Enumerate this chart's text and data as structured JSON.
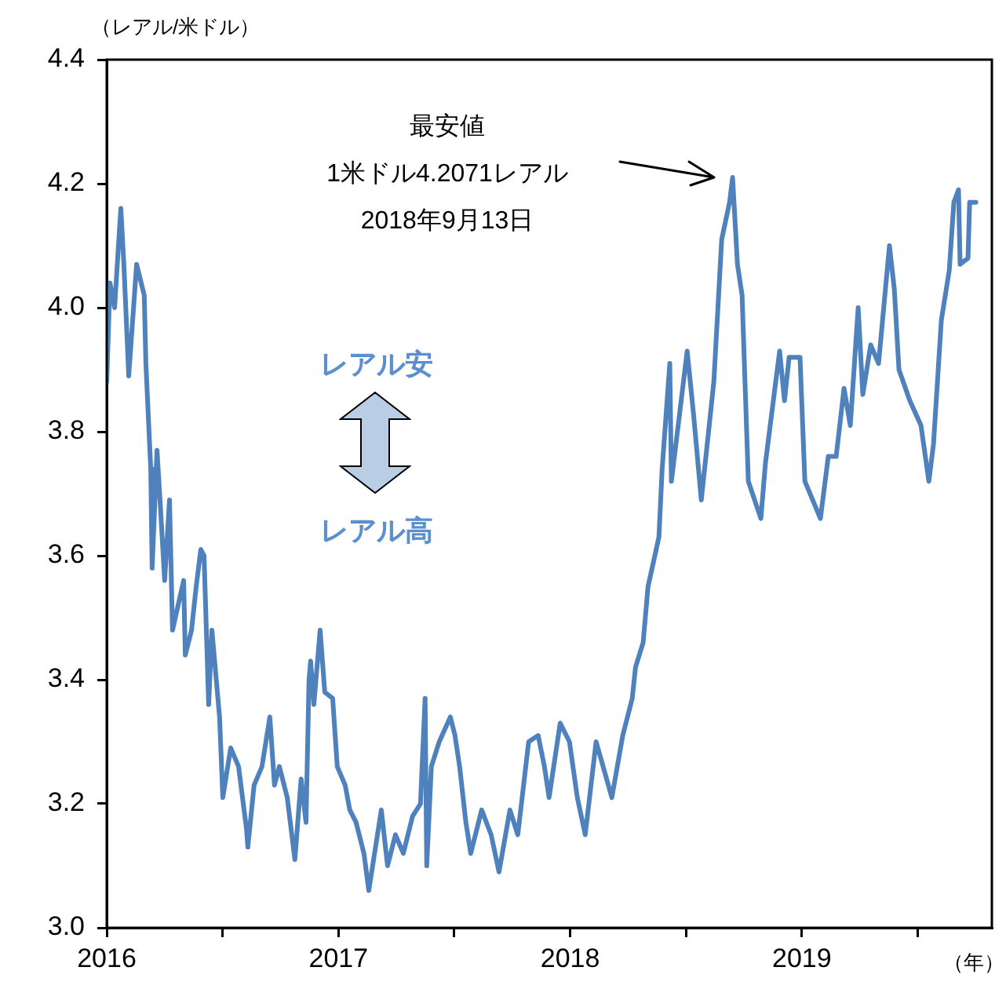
{
  "chart_data": {
    "type": "line",
    "ylabel": "（レアル/米ドル）",
    "xlabel": "（年）",
    "annotations": [
      "最安値\n1米ドル4.2071レアル\n2018年9月13日",
      "レアル安",
      "レアル高"
    ],
    "xlim": [
      2016,
      2019.82
    ],
    "xticks": [
      2016,
      {
        "value": 2016.5,
        "label": null
      },
      2017,
      {
        "value": 2017.5,
        "label": null
      },
      2018,
      {
        "value": 2018.5,
        "label": null
      },
      2019,
      {
        "value": 2019.5,
        "label": null
      }
    ],
    "ylim": [
      3.0,
      4.4
    ],
    "yticks": [
      {
        "value": 3,
        "label": "3.0"
      },
      3.2,
      3.4,
      3.6,
      3.8,
      {
        "value": 4,
        "label": "4.0"
      },
      4.2,
      4.4
    ],
    "grid": false,
    "legend": false,
    "marker": "none",
    "line_style": "solid",
    "series": [
      {
        "color": "#4f81bd",
        "x": [
          2016.0,
          2016.014,
          2016.034,
          2016.054,
          2016.061,
          2016.074,
          2016.095,
          2016.129,
          2016.162,
          2016.169,
          2016.19,
          2016.196,
          2016.217,
          2016.23,
          2016.25,
          2016.271,
          2016.284,
          2016.332,
          2016.339,
          2016.366,
          2016.386,
          2016.406,
          2016.42,
          2016.44,
          2016.454,
          2016.487,
          2016.501,
          2016.535,
          2016.569,
          2016.603,
          2016.609,
          2016.636,
          2016.67,
          2016.704,
          2016.724,
          2016.745,
          2016.779,
          2016.812,
          2016.839,
          2016.86,
          2016.873,
          2016.88,
          2016.894,
          2016.921,
          2016.941,
          2016.975,
          2016.995,
          2017.029,
          2017.049,
          2017.076,
          2017.11,
          2017.131,
          2017.185,
          2017.212,
          2017.246,
          2017.28,
          2017.32,
          2017.354,
          2017.374,
          2017.381,
          2017.401,
          2017.435,
          2017.483,
          2017.503,
          2017.523,
          2017.55,
          2017.571,
          2017.618,
          2017.659,
          2017.693,
          2017.74,
          2017.774,
          2017.821,
          2017.862,
          2017.889,
          2017.909,
          2017.957,
          2017.997,
          2018.031,
          2018.065,
          2018.112,
          2018.18,
          2018.227,
          2018.268,
          2018.282,
          2018.315,
          2018.336,
          2018.383,
          2018.397,
          2018.43,
          2018.437,
          2018.505,
          2018.532,
          2018.566,
          2018.62,
          2018.654,
          2018.688,
          2018.701,
          2018.722,
          2018.742,
          2018.769,
          2018.823,
          2018.843,
          2018.904,
          2018.925,
          2018.945,
          2018.992,
          2019.013,
          2019.08,
          2019.114,
          2019.148,
          2019.182,
          2019.209,
          2019.243,
          2019.263,
          2019.297,
          2019.331,
          2019.378,
          2019.399,
          2019.419,
          2019.466,
          2019.514,
          2019.548,
          2019.568,
          2019.602,
          2019.636,
          2019.656,
          2019.676,
          2019.683,
          2019.717,
          2019.724,
          2019.751
        ],
        "values": [
          3.88,
          4.04,
          4.0,
          4.12,
          4.16,
          4.07,
          3.89,
          4.07,
          4.02,
          3.91,
          3.74,
          3.58,
          3.77,
          3.69,
          3.56,
          3.69,
          3.48,
          3.56,
          3.44,
          3.48,
          3.55,
          3.61,
          3.6,
          3.36,
          3.48,
          3.34,
          3.21,
          3.29,
          3.26,
          3.16,
          3.13,
          3.23,
          3.26,
          3.34,
          3.23,
          3.26,
          3.21,
          3.11,
          3.24,
          3.17,
          3.4,
          3.43,
          3.36,
          3.48,
          3.38,
          3.37,
          3.26,
          3.23,
          3.19,
          3.17,
          3.12,
          3.06,
          3.19,
          3.1,
          3.15,
          3.12,
          3.18,
          3.2,
          3.37,
          3.1,
          3.26,
          3.3,
          3.34,
          3.31,
          3.26,
          3.17,
          3.12,
          3.19,
          3.15,
          3.09,
          3.19,
          3.15,
          3.3,
          3.31,
          3.26,
          3.21,
          3.33,
          3.3,
          3.21,
          3.15,
          3.3,
          3.21,
          3.31,
          3.37,
          3.42,
          3.46,
          3.55,
          3.63,
          3.74,
          3.91,
          3.72,
          3.93,
          3.83,
          3.69,
          3.88,
          4.11,
          4.17,
          4.21,
          4.07,
          4.02,
          3.72,
          3.66,
          3.75,
          3.93,
          3.85,
          3.92,
          3.92,
          3.72,
          3.66,
          3.76,
          3.76,
          3.87,
          3.81,
          4.0,
          3.86,
          3.94,
          3.91,
          4.1,
          4.03,
          3.9,
          3.85,
          3.81,
          3.72,
          3.78,
          3.98,
          4.06,
          4.17,
          4.19,
          4.07,
          4.08,
          4.17,
          4.17
        ]
      }
    ]
  }
}
